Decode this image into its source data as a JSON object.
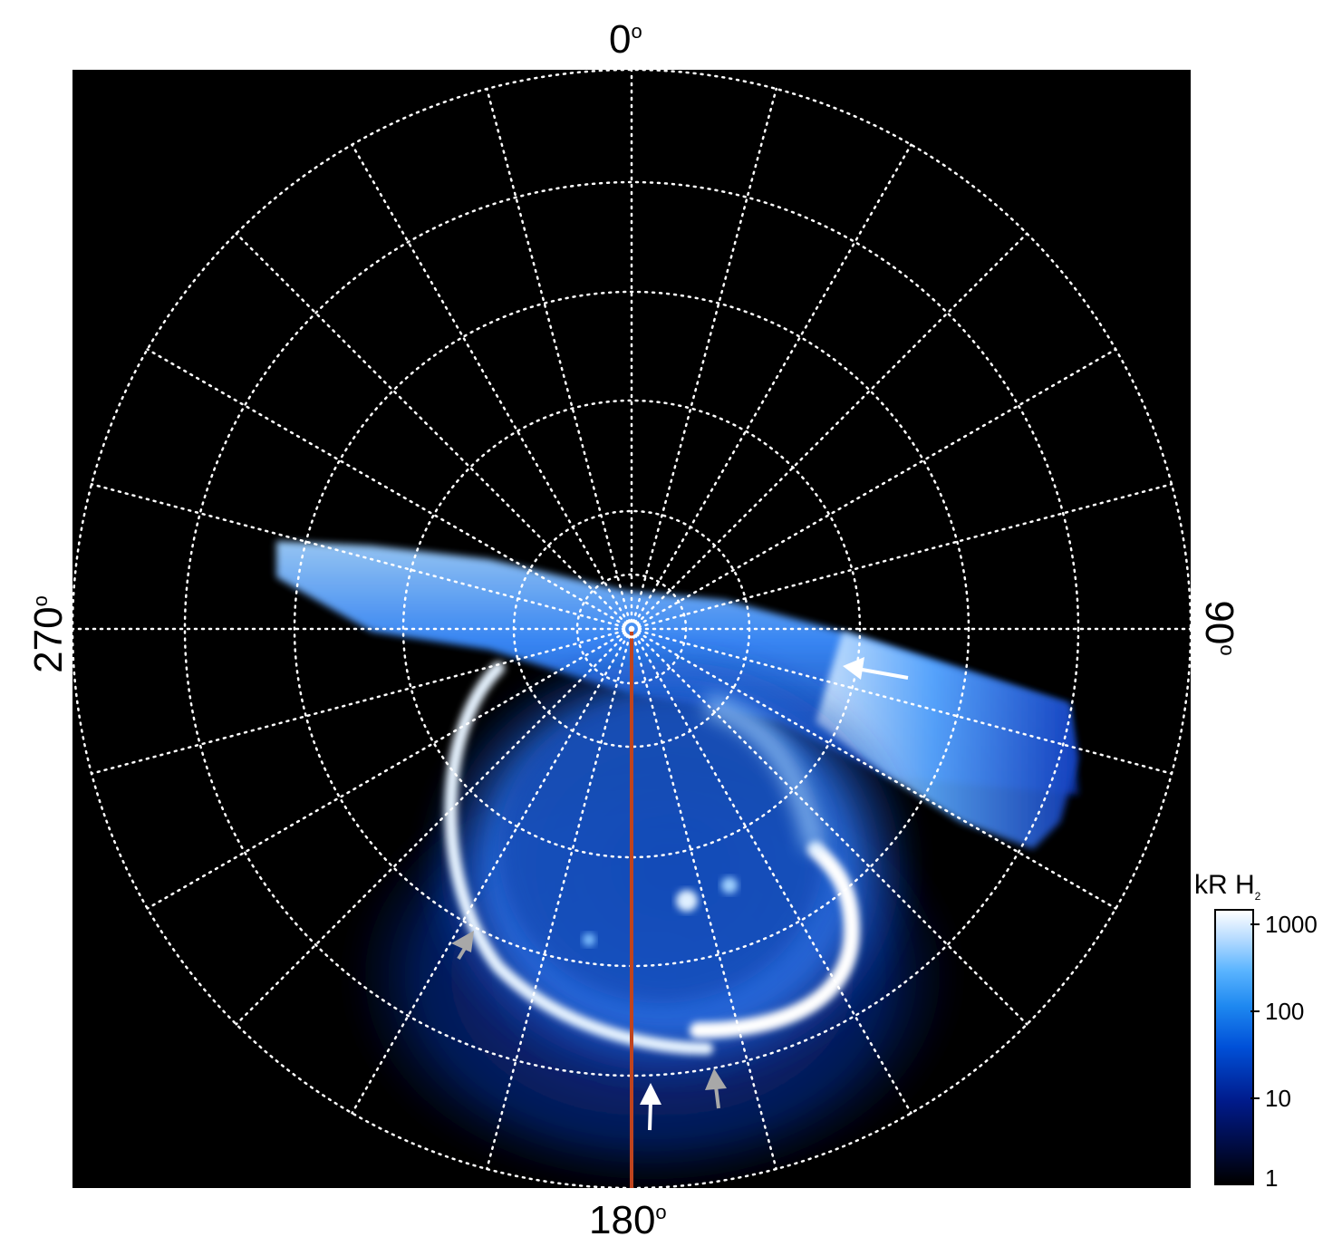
{
  "longitude_labels": {
    "top": "0",
    "bottom": "180",
    "left": "270",
    "right": "90",
    "degree_symbol": "o"
  },
  "colorbar": {
    "title_main": "kR H",
    "title_sub": "2",
    "ticks": [
      "1000",
      "100",
      "10",
      "1"
    ]
  },
  "colors": {
    "background": "#000000",
    "grid": "#ffffff",
    "meridian_line": "#c0441e",
    "aurora_bright": "#ffffff",
    "aurora_mid": "#3a8cff",
    "aurora_dim": "#0a2e9a",
    "arrow_white": "#ffffff",
    "arrow_gray": "#a8a8a8"
  }
}
